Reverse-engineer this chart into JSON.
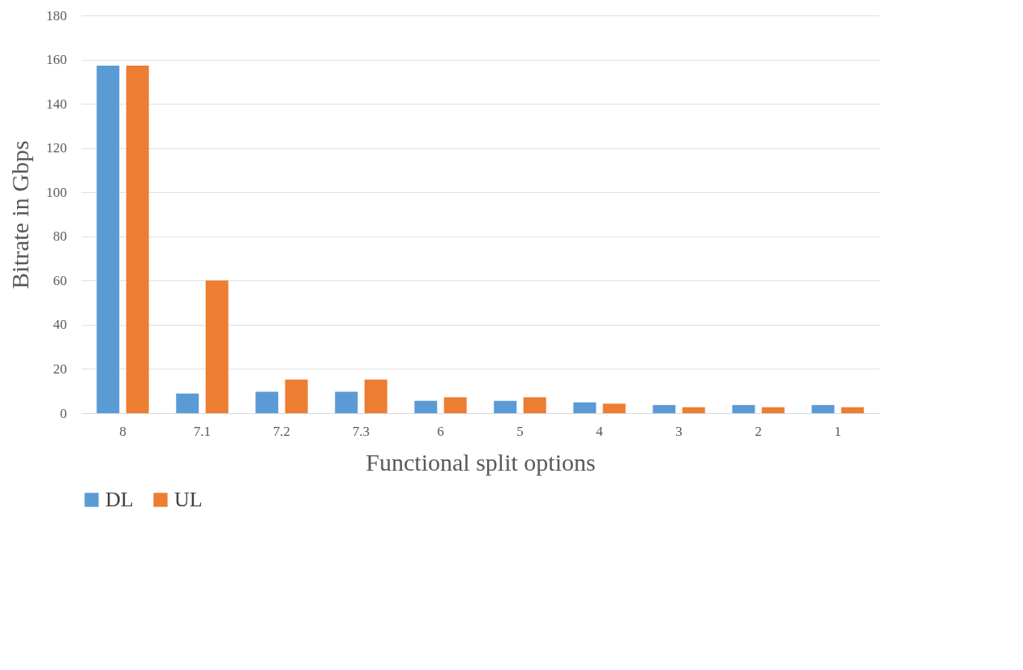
{
  "chart_data": {
    "type": "bar",
    "xlabel": "Functional split options",
    "ylabel": "Bitrate in Gbps",
    "categories": [
      "8",
      "7.1",
      "7.2",
      "7.3",
      "6",
      "5",
      "4",
      "3",
      "2",
      "1"
    ],
    "series": [
      {
        "name": "DL",
        "color": "#5b9bd5",
        "values": [
          157.3,
          8.9,
          9.7,
          9.7,
          5.6,
          5.6,
          4.9,
          3.7,
          3.7,
          3.7
        ]
      },
      {
        "name": "UL",
        "color": "#ed7d31",
        "values": [
          157.3,
          60,
          15.2,
          15.2,
          7.2,
          7.2,
          4.3,
          2.7,
          2.7,
          2.7
        ]
      }
    ],
    "ylim": [
      0,
      180
    ],
    "yticks": [
      0,
      20,
      40,
      60,
      80,
      100,
      120,
      140,
      160,
      180
    ],
    "grid": "y",
    "legend": "bottom"
  }
}
